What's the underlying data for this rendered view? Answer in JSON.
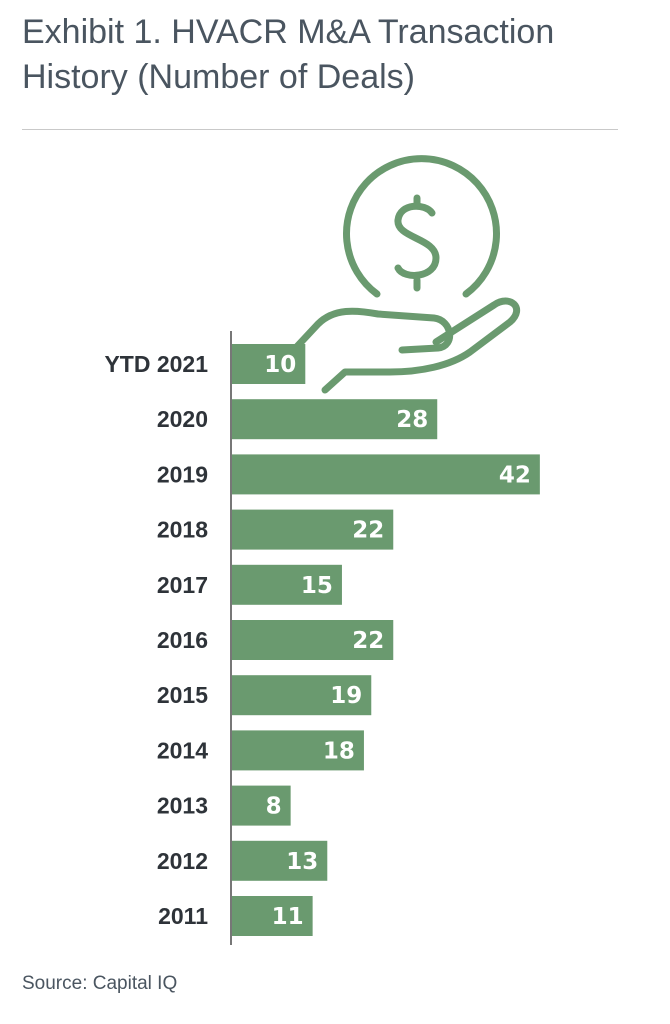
{
  "title_lines": [
    "Exhibit 1. HVACR M&A Transaction",
    "History (Number of Deals)"
  ],
  "source": "Source: Capital IQ",
  "colors": {
    "bar": "#6a9a6f",
    "bar_label": "#ffffff",
    "category_label": "#2e3339",
    "title": "#4a5560",
    "rule": "#c9c9c9"
  },
  "icon": "dollar-coin-in-hand-icon",
  "chart_data": {
    "type": "bar",
    "orientation": "horizontal",
    "title": "Exhibit 1. HVACR M&A Transaction History (Number of Deals)",
    "categories": [
      "YTD 2021",
      "2020",
      "2019",
      "2018",
      "2017",
      "2016",
      "2015",
      "2014",
      "2013",
      "2012",
      "2011"
    ],
    "values": [
      10,
      28,
      42,
      22,
      15,
      22,
      19,
      18,
      8,
      13,
      11
    ],
    "xlabel": "",
    "ylabel": "",
    "data_labels": true,
    "grid": false,
    "legend": "none"
  }
}
